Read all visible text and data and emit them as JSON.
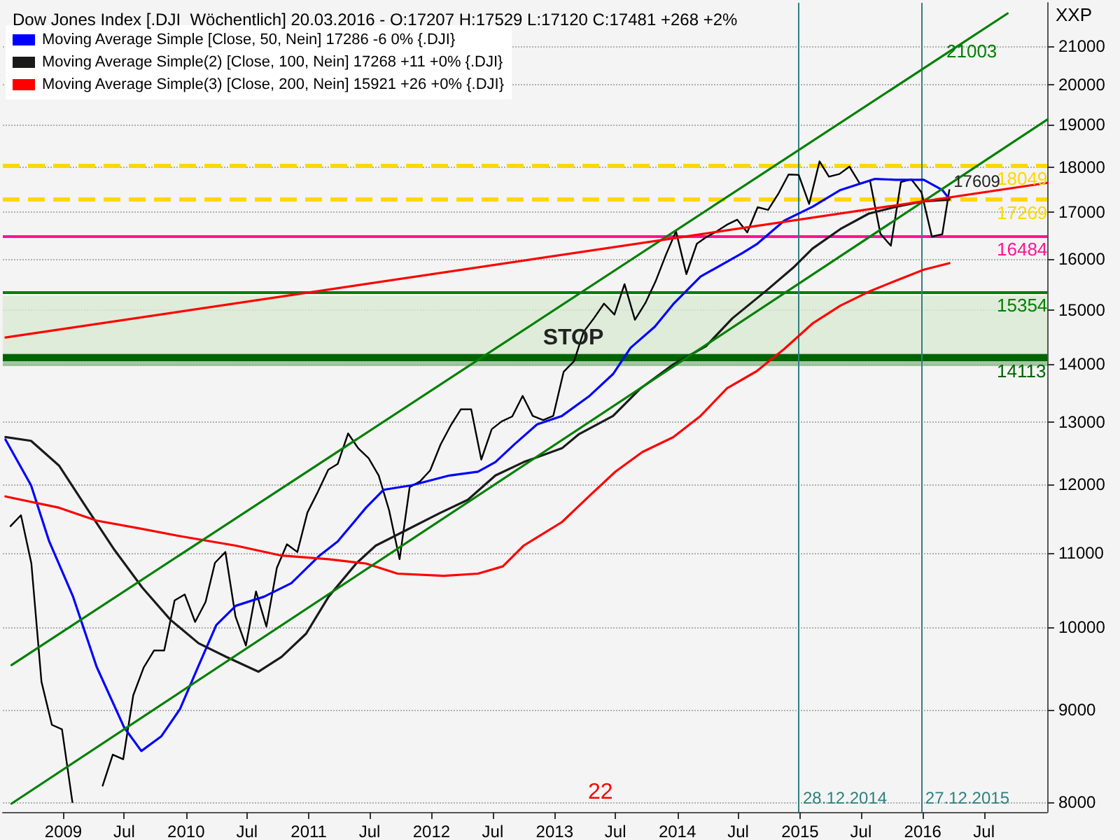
{
  "chart_data": {
    "type": "line",
    "title": "Dow Jones Index [.DJI  Wöchentlich] 20.03.2016 - O:17207 H:17529 L:17120 C:17481 +268 +2%",
    "ylabel": "XXP",
    "log": "y",
    "grid": "y",
    "legend": "top left",
    "xlim": [
      "2008-07-05",
      "2017-01-05"
    ],
    "xticks": [
      {
        "value": "2009-01-01",
        "label": "2009"
      },
      {
        "value": "2009-07-01",
        "label": "Jul"
      },
      {
        "value": "2010-01-01",
        "label": "2010"
      },
      {
        "value": "2010-07-01",
        "label": "Jul"
      },
      {
        "value": "2011-01-01",
        "label": "2011"
      },
      {
        "value": "2011-07-01",
        "label": "Jul"
      },
      {
        "value": "2012-01-01",
        "label": "2012"
      },
      {
        "value": "2012-07-01",
        "label": "Jul"
      },
      {
        "value": "2013-01-01",
        "label": "2013"
      },
      {
        "value": "2013-07-01",
        "label": "Jul"
      },
      {
        "value": "2014-01-01",
        "label": "2014"
      },
      {
        "value": "2014-07-01",
        "label": "Jul"
      },
      {
        "value": "2015-01-01",
        "label": "2015"
      },
      {
        "value": "2015-07-01",
        "label": "Jul"
      },
      {
        "value": "2016-01-01",
        "label": "2016"
      },
      {
        "value": "2016-07-01",
        "label": "Jul"
      }
    ],
    "ylim": [
      7900,
      22200
    ],
    "yticks": [
      8000,
      9000,
      10000,
      11000,
      12000,
      13000,
      14000,
      15000,
      16000,
      17000,
      18000,
      19000,
      20000,
      21000
    ],
    "series": [
      {
        "color": "#000000",
        "x": [
          "2008-07-28",
          "2008-08-28",
          "2008-09-28",
          "2008-10-28",
          "2008-11-28",
          "2008-12-28",
          "2009-01-28",
          "2009-02-28",
          "2009-03-28",
          "2009-04-28",
          "2009-05-28",
          "2009-06-28",
          "2009-07-28",
          "2009-08-28",
          "2009-09-28",
          "2009-10-28",
          "2009-11-28",
          "2009-12-28",
          "2010-01-28",
          "2010-02-28",
          "2010-03-28",
          "2010-04-28",
          "2010-05-28",
          "2010-06-28",
          "2010-07-28",
          "2010-08-28",
          "2010-09-28",
          "2010-10-28",
          "2010-11-28",
          "2010-12-28",
          "2011-01-28",
          "2011-02-28",
          "2011-03-28",
          "2011-04-28",
          "2011-05-28",
          "2011-06-28",
          "2011-07-28",
          "2011-08-28",
          "2011-09-28",
          "2011-10-28",
          "2011-11-28",
          "2011-12-28",
          "2012-01-28",
          "2012-02-28",
          "2012-03-28",
          "2012-04-28",
          "2012-05-28",
          "2012-06-28",
          "2012-07-28",
          "2012-08-28",
          "2012-09-28",
          "2012-10-28",
          "2012-11-28",
          "2012-12-28",
          "2013-01-28",
          "2013-02-28",
          "2013-03-28",
          "2013-04-28",
          "2013-05-28",
          "2013-06-28",
          "2013-07-28",
          "2013-08-28",
          "2013-09-28",
          "2013-10-28",
          "2013-11-28",
          "2013-12-28",
          "2014-01-28",
          "2014-02-28",
          "2014-03-28",
          "2014-04-28",
          "2014-05-28",
          "2014-06-28",
          "2014-07-28",
          "2014-08-28",
          "2014-09-28",
          "2014-10-28",
          "2014-11-28",
          "2014-12-28",
          "2015-01-28",
          "2015-02-28",
          "2015-03-28",
          "2015-04-28",
          "2015-05-28",
          "2015-06-28",
          "2015-07-28",
          "2015-08-28",
          "2015-09-28",
          "2015-10-28",
          "2015-11-28",
          "2015-12-28",
          "2016-01-28",
          "2016-02-28",
          "2016-03-20"
        ],
        "values": [
          11380,
          11540,
          10850,
          9330,
          8830,
          8780,
          8000,
          null,
          null,
          8170,
          8500,
          8450,
          9170,
          9500,
          9710,
          9710,
          10350,
          10430,
          10070,
          10330,
          10860,
          11010,
          10140,
          9770,
          10470,
          10010,
          10790,
          11120,
          11010,
          11580,
          11890,
          12230,
          12320,
          12810,
          12570,
          12410,
          12140,
          11610,
          10910,
          11960,
          12050,
          12220,
          12630,
          12950,
          13210,
          13210,
          12390,
          12880,
          13010,
          13090,
          13440,
          13100,
          13030,
          13100,
          13860,
          14050,
          14580,
          14840,
          15120,
          14910,
          15500,
          14810,
          15130,
          15550,
          16090,
          16580,
          15700,
          16320,
          16460,
          16580,
          16720,
          16830,
          16560,
          17100,
          17040,
          17390,
          17830,
          17820,
          17170,
          18130,
          17780,
          17840,
          18010,
          17620,
          17690,
          16530,
          16280,
          17660,
          17720,
          17430,
          16470,
          16520,
          17481
        ]
      },
      {
        "name": "Moving Average Simple [Close, 50, Nein] 17286 -6 0% {.DJI}",
        "color": "#0000ff",
        "x": [
          "2008-07-13",
          "2008-09-27",
          "2008-11-20",
          "2009-01-30",
          "2009-04-10",
          "2009-07-01",
          "2009-08-21",
          "2009-10-19",
          "2009-12-14",
          "2010-02-06",
          "2010-04-01",
          "2010-05-29",
          "2010-08-21",
          "2010-11-10",
          "2011-02-02",
          "2011-03-28",
          "2011-06-20",
          "2011-08-11",
          "2011-11-03",
          "2012-02-23",
          "2012-05-18",
          "2012-07-09",
          "2012-09-05",
          "2012-11-10",
          "2013-01-23",
          "2013-04-13",
          "2013-06-24",
          "2013-08-15",
          "2013-10-26",
          "2013-12-20",
          "2014-03-11",
          "2014-07-14",
          "2014-08-25",
          "2014-11-15",
          "2015-02-07",
          "2015-05-01",
          "2015-08-12",
          "2015-10-13",
          "2016-01-04",
          "2016-02-28",
          "2016-03-20"
        ],
        "values": [
          12710,
          11990,
          11160,
          10400,
          9510,
          8800,
          8540,
          8700,
          9010,
          9510,
          10030,
          10280,
          10400,
          10580,
          10960,
          11160,
          11650,
          11920,
          11990,
          12140,
          12200,
          12350,
          12640,
          12960,
          13100,
          13430,
          13820,
          14290,
          14680,
          15110,
          15650,
          16130,
          16310,
          16810,
          17110,
          17480,
          17730,
          17710,
          17710,
          17480,
          17286
        ]
      },
      {
        "name": "Moving Average Simple(2) [Close, 100, Nein] 17268 +11 +0% {.DJI}",
        "color": "#1a1a1a",
        "x": [
          "2008-07-13",
          "2008-09-27",
          "2008-12-20",
          "2009-03-11",
          "2009-06-02",
          "2009-08-24",
          "2009-11-15",
          "2010-02-07",
          "2010-05-01",
          "2010-08-04",
          "2010-10-12",
          "2010-12-24",
          "2011-03-01",
          "2011-05-22",
          "2011-07-19",
          "2011-10-09",
          "2012-01-25",
          "2012-04-18",
          "2012-07-09",
          "2012-10-01",
          "2013-01-23",
          "2013-03-15",
          "2013-06-24",
          "2013-09-14",
          "2013-12-20",
          "2014-03-27",
          "2014-06-14",
          "2014-09-24",
          "2014-12-15",
          "2015-02-07",
          "2015-05-01",
          "2015-07-24",
          "2015-10-13",
          "2016-01-04",
          "2016-03-20"
        ],
        "values": [
          12750,
          12690,
          12290,
          11650,
          11040,
          10520,
          10100,
          9800,
          9630,
          9450,
          9630,
          9920,
          10400,
          10850,
          11100,
          11300,
          11570,
          11770,
          12140,
          12350,
          12570,
          12800,
          13100,
          13570,
          13990,
          14320,
          14840,
          15380,
          15850,
          16220,
          16630,
          16960,
          17110,
          17230,
          17268
        ]
      },
      {
        "name": "Moving Average Simple(3) [Close, 200, Nein] 15921 +26 +0% {.DJI}",
        "color": "#ff0000",
        "x": [
          "2008-07-13",
          "2008-12-20",
          "2009-04-10",
          "2009-08-24",
          "2009-12-09",
          "2010-05-29",
          "2010-10-12",
          "2011-03-01",
          "2011-06-20",
          "2011-09-22",
          "2012-02-06",
          "2012-05-18",
          "2012-07-31",
          "2012-10-01",
          "2013-01-23",
          "2013-04-13",
          "2013-07-01",
          "2013-09-19",
          "2013-12-20",
          "2014-03-11",
          "2014-05-29",
          "2014-08-25",
          "2014-11-15",
          "2015-02-07",
          "2015-05-01",
          "2015-07-24",
          "2015-10-13",
          "2016-01-04",
          "2016-03-20"
        ],
        "values": [
          11820,
          11650,
          11460,
          11340,
          11240,
          11100,
          10960,
          10910,
          10850,
          10710,
          10680,
          10710,
          10810,
          11100,
          11440,
          11820,
          12200,
          12510,
          12750,
          13100,
          13570,
          13870,
          14270,
          14740,
          15080,
          15350,
          15570,
          15790,
          15921
        ]
      },
      {
        "color": "#008000",
        "x": [
          "2008-07-31",
          "2016-09-09"
        ],
        "values": [
          9530,
          21900
        ]
      },
      {
        "color": "#008000",
        "x": [
          "2008-07-31",
          "2017-01-05"
        ],
        "values": [
          7985,
          19125
        ]
      },
      {
        "color": "#ff0000",
        "x": [
          "2008-07-13",
          "2017-01-05"
        ],
        "values": [
          14480,
          17640
        ]
      }
    ],
    "ref_lines": [
      {
        "axis": "y",
        "value": 18049,
        "label": "18049",
        "color": "#ffd700",
        "line_style": "dashed"
      },
      {
        "axis": "y",
        "value": 17269,
        "label": "17269",
        "color": "#ffd700",
        "line_style": "dashed"
      },
      {
        "axis": "y",
        "value": 16484,
        "label": "16484",
        "color": "#ff1493"
      },
      {
        "axis": "y",
        "value": 15354,
        "label": "15354",
        "color": "#008000"
      },
      {
        "axis": "y",
        "value": 14113,
        "label": "14113",
        "color": "#006400"
      },
      {
        "axis": "x",
        "value": "2014-12-28",
        "label": "28.12.2014",
        "color": "#2f7f7f"
      },
      {
        "axis": "x",
        "value": "2015-12-27",
        "label": "27.12.2015",
        "color": "#2f7f7f"
      }
    ],
    "bands": [
      {
        "axis": "y",
        "from": 14190,
        "to": 15270,
        "color": "#d9ead3"
      },
      {
        "axis": "y",
        "from": 13960,
        "to": 14190,
        "color": "#8fbc8f"
      }
    ],
    "annotations": [
      {
        "text": "STOP",
        "x": "2012-11-15",
        "y": 14113
      },
      "21003",
      {
        "text": "17609",
        "x": "2016-03-20",
        "y": 17609
      },
      "22"
    ]
  }
}
